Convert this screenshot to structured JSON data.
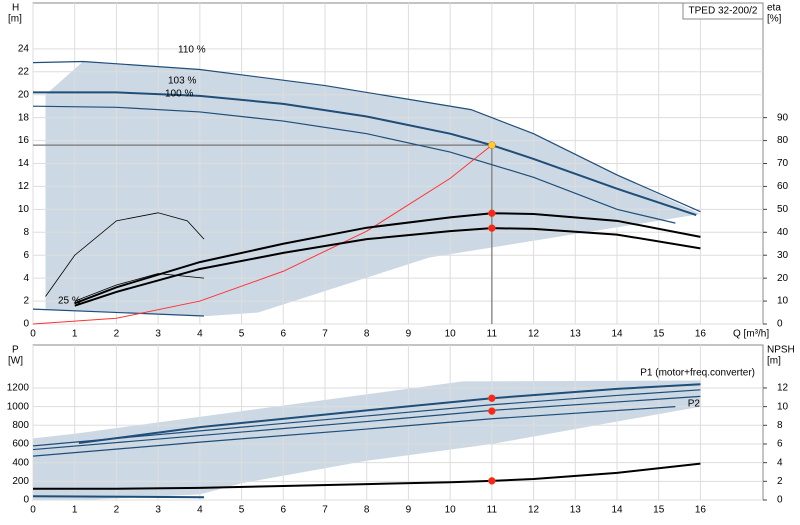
{
  "chart_data": [
    {
      "type": "line",
      "title": "TPED 32-200/2",
      "y_label": "H",
      "y_unit": "[m]",
      "y2_label": "eta",
      "y2_unit": "[%]",
      "x_label": "Q [m³/h]",
      "xlim": [
        0,
        17.5
      ],
      "xticks": [
        0,
        1,
        2,
        3,
        4,
        5,
        6,
        7,
        8,
        9,
        10,
        11,
        12,
        13,
        14,
        15,
        16
      ],
      "ylim": [
        0,
        28
      ],
      "yticks": [
        0,
        2,
        4,
        6,
        8,
        10,
        12,
        14,
        16,
        18,
        20,
        22,
        24
      ],
      "y2lim": [
        0,
        140
      ],
      "y2ticks": [
        0,
        10,
        20,
        30,
        40,
        50,
        60,
        70,
        80,
        90
      ],
      "grid": true,
      "annotations": [
        "110 %",
        "103 %",
        "100 %",
        "25 %"
      ],
      "area": {
        "color": "#ccd9e4",
        "x": [
          1.2,
          4,
          7,
          10.5,
          12,
          14,
          16,
          9.5,
          5.4,
          4.2,
          2,
          0.3,
          0.3
        ],
        "values": [
          22.9,
          22.2,
          20.8,
          18.7,
          16.6,
          13.0,
          9.6,
          5.8,
          1.0,
          0.7,
          1.0,
          1.3,
          20.0
        ]
      },
      "series": [
        {
          "color": "#1f4e79",
          "width": 1.2,
          "x": [
            0,
            1.2,
            4,
            7,
            10.5,
            12,
            14,
            16
          ],
          "values": [
            22.8,
            22.9,
            22.2,
            20.8,
            18.7,
            16.6,
            13.0,
            9.8
          ]
        },
        {
          "color": "#1f4e79",
          "width": 2,
          "x": [
            0,
            2,
            4,
            6,
            8,
            10,
            11,
            12,
            14,
            15.9
          ],
          "values": [
            20.2,
            20.2,
            19.9,
            19.2,
            18.1,
            16.6,
            15.6,
            14.4,
            11.8,
            9.5
          ]
        },
        {
          "color": "#1f4e79",
          "width": 1.2,
          "x": [
            0,
            2,
            4,
            6,
            8,
            10,
            12,
            14,
            15.4
          ],
          "values": [
            19.0,
            18.9,
            18.5,
            17.7,
            16.6,
            15.0,
            12.8,
            10.0,
            8.8
          ]
        },
        {
          "color": "#1f4e79",
          "width": 1.2,
          "x": [
            0,
            4.1
          ],
          "values": [
            1.3,
            0.7
          ]
        },
        {
          "color": "#ff3333",
          "width": 1,
          "x": [
            0,
            2,
            4,
            6,
            8,
            10,
            11
          ],
          "values": [
            0,
            0.5,
            2.0,
            4.6,
            8.1,
            12.7,
            15.6
          ]
        },
        {
          "color": "#000000",
          "width": 2,
          "axis": "y2",
          "x": [
            1,
            2,
            4,
            6,
            8,
            10,
            11,
            12,
            14,
            16
          ],
          "values": [
            9,
            16,
            27,
            35,
            42,
            46.5,
            48.3,
            48,
            45,
            38
          ]
        },
        {
          "color": "#000000",
          "width": 2,
          "axis": "y2",
          "x": [
            1,
            2,
            4,
            6,
            8,
            10,
            11,
            12,
            14,
            16
          ],
          "values": [
            8,
            14,
            24,
            31,
            37,
            40.5,
            41.8,
            41.5,
            39,
            33
          ]
        },
        {
          "color": "#000000",
          "width": 0.8,
          "axis": "y2",
          "x": [
            0.3,
            1,
            2,
            3,
            3.7,
            4.1
          ],
          "values": [
            12,
            30,
            45,
            48.5,
            45,
            37
          ]
        },
        {
          "color": "#000000",
          "width": 0.8,
          "axis": "y2",
          "x": [
            1,
            2,
            3,
            4.1
          ],
          "values": [
            10,
            17,
            22,
            20
          ]
        }
      ],
      "points": [
        {
          "color": "#ffcc33",
          "x": 11,
          "values": 15.6
        },
        {
          "color": "#ff2222",
          "x": 11,
          "values": 48.3,
          "axis": "y2"
        },
        {
          "color": "#ff2222",
          "x": 11,
          "values": 41.8,
          "axis": "y2"
        }
      ]
    },
    {
      "type": "line",
      "y_label": "P",
      "y_unit": "[W]",
      "y2_label": "NPSH",
      "y2_unit": "[m]",
      "xlim": [
        0,
        17.5
      ],
      "xticks": [
        0,
        1,
        2,
        3,
        4,
        5,
        6,
        7,
        8,
        9,
        10,
        11,
        12,
        13,
        14,
        15,
        16
      ],
      "ylim": [
        0,
        1660
      ],
      "yticks": [
        0,
        200,
        400,
        600,
        800,
        1000,
        1200
      ],
      "y2lim": [
        0,
        16.6
      ],
      "y2ticks": [
        0,
        2,
        4,
        6,
        8,
        10,
        12
      ],
      "grid": true,
      "annotations": [
        "P1 (motor+freq.converter)",
        "P2"
      ],
      "area": {
        "color": "#ccd9e4",
        "x": [
          0,
          1,
          10.3,
          16,
          16,
          11,
          8,
          5,
          4,
          1.2,
          0
        ],
        "values": [
          660,
          710,
          1270,
          1280,
          1000,
          600,
          420,
          180,
          60,
          0,
          0
        ]
      },
      "series": [
        {
          "color": "#1f4e79",
          "width": 2,
          "x": [
            1.1,
            4,
            8,
            11,
            14,
            16
          ],
          "values": [
            610,
            780,
            960,
            1090,
            1190,
            1240
          ]
        },
        {
          "color": "#1f4e79",
          "width": 1.2,
          "x": [
            0,
            4,
            8,
            11,
            14,
            16
          ],
          "values": [
            580,
            740,
            900,
            1020,
            1120,
            1180
          ]
        },
        {
          "color": "#1f4e79",
          "width": 1.2,
          "x": [
            0,
            4,
            8,
            11,
            16
          ],
          "values": [
            540,
            690,
            840,
            960,
            1110
          ]
        },
        {
          "color": "#1f4e79",
          "width": 1.2,
          "x": [
            0,
            4,
            8,
            11,
            15.4
          ],
          "values": [
            470,
            620,
            760,
            870,
            1000
          ]
        },
        {
          "color": "#1f4e79",
          "width": 2,
          "x": [
            0,
            4.1
          ],
          "values": [
            40,
            30
          ]
        },
        {
          "color": "#000000",
          "width": 2,
          "axis": "y2",
          "x": [
            0,
            2,
            4,
            6,
            8,
            10,
            11,
            12,
            14,
            16
          ],
          "values": [
            1.2,
            1.2,
            1.3,
            1.5,
            1.7,
            1.9,
            2.05,
            2.25,
            2.9,
            3.9
          ]
        }
      ],
      "points": [
        {
          "color": "#ff2222",
          "x": 11,
          "values": 1090
        },
        {
          "color": "#ff2222",
          "x": 11,
          "values": 952
        },
        {
          "color": "#ff2222",
          "x": 11,
          "values": 2.05,
          "axis": "y2"
        }
      ]
    }
  ]
}
